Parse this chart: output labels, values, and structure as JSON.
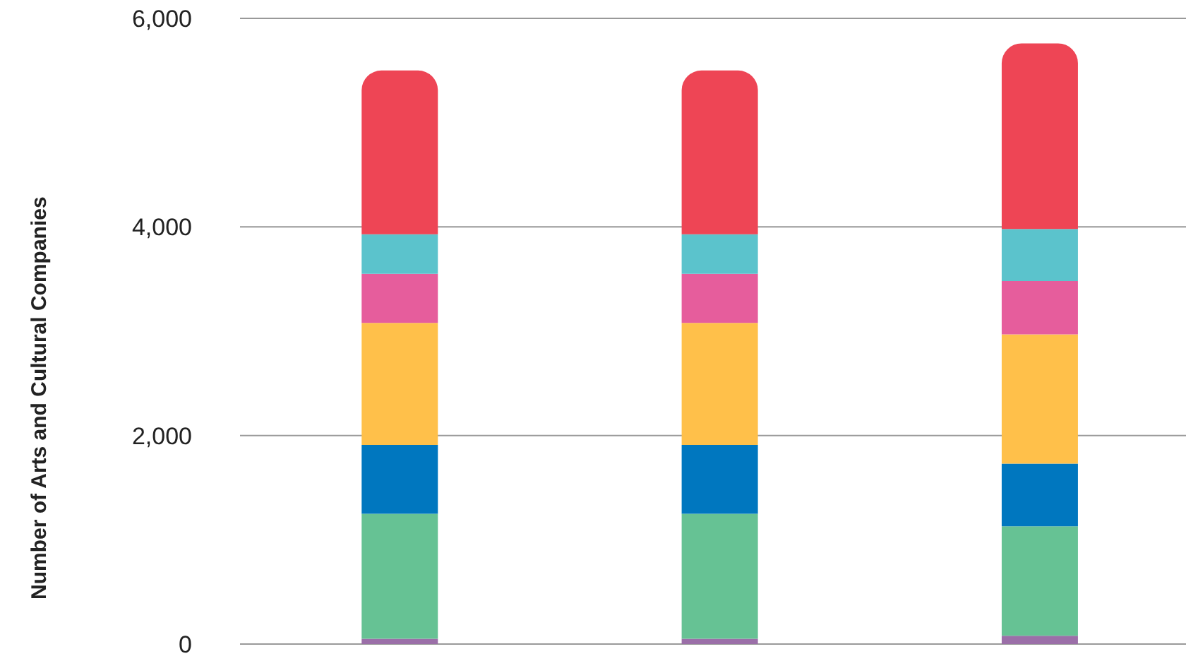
{
  "chart_data": {
    "type": "bar",
    "stacked": true,
    "ylabel": "Number of Arts and Cultural Companies",
    "categories": [
      null,
      null,
      null
    ],
    "series": [
      {
        "color": "#9b6fa8",
        "values": [
          50,
          50,
          80
        ]
      },
      {
        "color": "#66c294",
        "values": [
          1200,
          1200,
          1050
        ]
      },
      {
        "color": "#0077bf",
        "values": [
          660,
          660,
          600
        ]
      },
      {
        "color": "#ffc04a",
        "values": [
          1170,
          1170,
          1240
        ]
      },
      {
        "color": "#e65d9c",
        "values": [
          470,
          470,
          510
        ]
      },
      {
        "color": "#5bc3cc",
        "values": [
          380,
          380,
          500
        ]
      },
      {
        "color": "#ee4555",
        "values": [
          1570,
          1570,
          1780
        ]
      }
    ],
    "ylim": [
      0,
      6000
    ],
    "yticks": [
      {
        "value": 0,
        "label": "0"
      },
      {
        "value": 2000,
        "label": "2,000"
      },
      {
        "value": 4000,
        "label": "4,000"
      },
      {
        "value": 6000,
        "label": "6,000"
      }
    ],
    "grid": "y",
    "tick_labels": "y",
    "legend": false
  }
}
